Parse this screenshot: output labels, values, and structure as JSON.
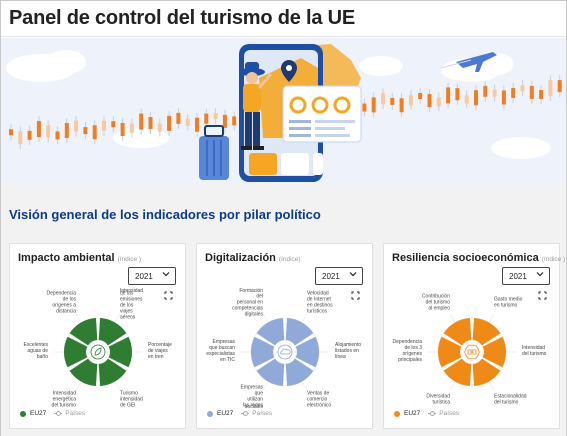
{
  "header": {
    "title": "Panel de control del turismo de la UE"
  },
  "overview": {
    "title": "Visión general de los indicadores por pilar político"
  },
  "colors": {
    "title": "#0e3a8a",
    "environment": "#2e7d32",
    "digital": "#8fa9d8",
    "resilience": "#ef8a17"
  },
  "cards": [
    {
      "title": "Impacto ambiental",
      "subtitle": "(índice )",
      "year": "2021",
      "legend_series": "EU27",
      "legend_compare": "Países",
      "indicators": [
        "Intensidad de las emisiones de los viajes aéreos",
        "Porcentaje de viajes en tren",
        "Turismo intensidad de GEI",
        "Intensidad energética del turismo",
        "Excelentes aguas de baño",
        "Dependencia de los orígenes a distancia"
      ]
    },
    {
      "title": "Digitalización",
      "subtitle": "(índice)",
      "year": "2021",
      "legend_series": "EU27",
      "legend_compare": "Países",
      "indicators": [
        "Velocidad de Internet en destinos turísticos",
        "Alojamiento listados en línea",
        "Ventas de comercio electrónico",
        "Empresas que utilizan las redes sociales",
        "Empresas que buscan especialistas en TIC",
        "Formación del personal en competencias digitales"
      ]
    },
    {
      "title": "Resiliencia socioeconómica",
      "subtitle": "(índice )",
      "year": "2021",
      "legend_series": "EU27",
      "legend_compare": "Países",
      "indicators": [
        "Gasto medio en turismo",
        "Intensidad del turismo",
        "Estacionalidad del turismo",
        "Diversidad turística",
        "Dependencia de los 3 orígenes principales",
        "Contribución del turismo al empleo"
      ]
    }
  ]
}
